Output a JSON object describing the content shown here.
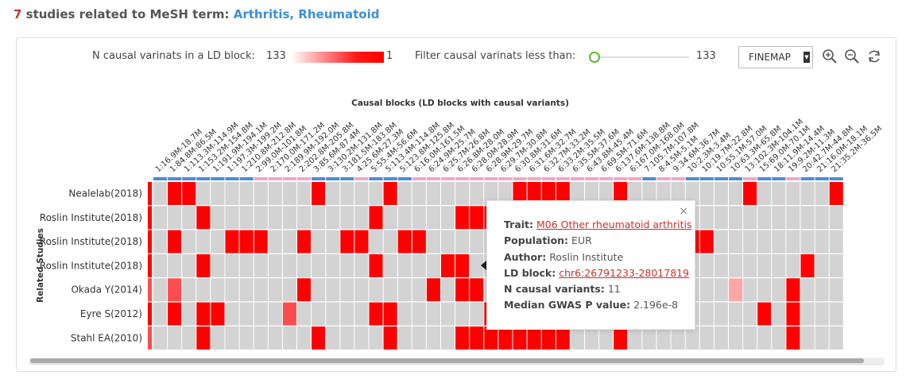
{
  "heading": {
    "count": "7",
    "text": " studies related to MeSH term: ",
    "term": "Arthritis, Rheumatoid"
  },
  "controls": {
    "ld_label": "N causal varinats in a LD block:",
    "ld_min": "133",
    "ld_max": "1",
    "filter_label": "Filter causal varinats less than:",
    "filter_value": "133",
    "select_value": "FINEMAP",
    "icons": [
      "zoom-in-icon",
      "zoom-out-icon",
      "refresh-icon"
    ]
  },
  "colors": {
    "high": "#ff0000",
    "medium": "#ff4d4d",
    "light": "#ffa6a6",
    "empty": "#d3d3d3",
    "chr_odd": "#4d8cd6",
    "chr_even": "#f0a6c8",
    "accent": "#3a8fd9"
  },
  "chart_data": {
    "type": "heatmap",
    "title": "Causal blocks (LD blocks with causal variants)",
    "ylabel": "Related Studies",
    "blocks": [
      "1:16.9M-18.7M",
      "1:84.8M-86.5M",
      "1:113.3M-114.9M",
      "1:153.2M-154.8M",
      "1:191.9M-194.1M",
      "1:197.3M-199.2M",
      "1:210.8M-212.8M",
      "2:99.0M-101.8M",
      "2:170.0M-171.2M",
      "2:189.9M-192.0M",
      "2:202.8M-205.8M",
      "3:85.6M-87.4M",
      "3:130.2M-131.8M",
      "3:181.5M-183.8M",
      "4:25.6M-27.3M",
      "5:55.4M-56.6M",
      "5:113.4M-114.8M",
      "5:123.8M-125.8M",
      "6:16.0M-161.5M",
      "6:24.9M-25.7M",
      "6:25.7M-26.8M",
      "6:26.8M-28.0M",
      "6:28.0M-28.9M",
      "6:28.9M-29.7M",
      "6:29.7M-30.8M",
      "6:30.8M-31.6M",
      "6:31.6M-32.7M",
      "6:32.7M-33.2M",
      "6:33.2M-35.5M",
      "6:35.5M-37.6M",
      "6:43.8M-45.4M",
      "6:69.5M-71.6M",
      "6:137.6M-138.8M",
      "6:167.0M-168.0M",
      "7:105.7M-107.8M",
      "8:4.5M-5.1M",
      "9:34.6M-36.7M",
      "10:2.3M-3.4M",
      "10:19.7M-22.8M",
      "10:55.1M-57.0M",
      "10:63.3M-65.8M",
      "13:102.3M-104.1M",
      "15:69.0M-70.1M",
      "18:11.9M-14.4M",
      "19:9.2M-11.3M",
      "20:42.7M-44.8M",
      "21:16.0M-18.1M",
      "21:35.2M-36.5M"
    ],
    "chromosome_bar": [
      "odd",
      "odd",
      "odd",
      "odd",
      "odd",
      "odd",
      "odd",
      "even",
      "even",
      "even",
      "even",
      "odd",
      "odd",
      "odd",
      "even",
      "odd",
      "odd",
      "odd",
      "even",
      "even",
      "even",
      "even",
      "even",
      "even",
      "even",
      "even",
      "even",
      "even",
      "even",
      "even",
      "even",
      "even",
      "even",
      "even",
      "odd",
      "even",
      "even",
      "odd",
      "odd",
      "odd",
      "odd",
      "even",
      "odd",
      "odd",
      "even",
      "odd",
      "odd",
      "odd"
    ],
    "studies": [
      "Nealelab(2018)",
      "Roslin Institute(2018)",
      "Roslin Institute(2018)",
      "Roslin Institute(2018)",
      "Okada Y(2014)",
      "Eyre S(2012)",
      "Stahl EA(2010)"
    ],
    "row_lead_level": [
      3,
      3,
      3,
      3,
      2,
      3,
      2
    ],
    "matrix": [
      [
        0,
        3,
        3,
        0,
        0,
        0,
        0,
        0,
        0,
        0,
        0,
        3,
        0,
        0,
        0,
        0,
        3,
        0,
        0,
        0,
        0,
        0,
        0,
        0,
        0,
        3,
        3,
        3,
        3,
        0,
        0,
        0,
        3,
        0,
        0,
        0,
        0,
        0,
        0,
        0,
        0,
        3,
        0,
        0,
        0,
        0,
        0,
        3
      ],
      [
        0,
        0,
        0,
        3,
        0,
        0,
        0,
        0,
        0,
        0,
        0,
        0,
        0,
        0,
        0,
        3,
        0,
        0,
        0,
        0,
        0,
        3,
        3,
        3,
        0,
        0,
        0,
        0,
        0,
        0,
        0,
        0,
        0,
        0,
        0,
        0,
        0,
        0,
        0,
        0,
        0,
        0,
        0,
        0,
        0,
        0,
        0,
        0
      ],
      [
        0,
        3,
        0,
        0,
        0,
        3,
        3,
        3,
        0,
        0,
        3,
        0,
        0,
        3,
        3,
        0,
        0,
        3,
        3,
        0,
        0,
        0,
        0,
        0,
        0,
        0,
        0,
        0,
        0,
        0,
        0,
        0,
        0,
        0,
        0,
        0,
        3,
        3,
        3,
        0,
        0,
        0,
        0,
        0,
        0,
        0,
        0,
        0
      ],
      [
        0,
        0,
        0,
        3,
        0,
        0,
        0,
        0,
        0,
        0,
        0,
        0,
        0,
        0,
        0,
        3,
        0,
        0,
        0,
        0,
        3,
        3,
        0,
        0,
        0,
        0,
        0,
        0,
        0,
        0,
        0,
        0,
        0,
        0,
        0,
        0,
        0,
        0,
        0,
        0,
        0,
        0,
        0,
        0,
        0,
        3,
        0,
        0
      ],
      [
        0,
        2,
        0,
        0,
        0,
        0,
        0,
        0,
        0,
        0,
        3,
        0,
        0,
        0,
        0,
        0,
        0,
        0,
        0,
        3,
        0,
        3,
        3,
        0,
        0,
        0,
        0,
        0,
        0,
        0,
        0,
        0,
        0,
        0,
        0,
        0,
        0,
        0,
        0,
        0,
        1,
        0,
        0,
        0,
        3,
        0,
        0,
        0
      ],
      [
        0,
        3,
        0,
        3,
        3,
        0,
        0,
        0,
        0,
        2,
        0,
        0,
        0,
        0,
        0,
        3,
        3,
        0,
        0,
        0,
        0,
        0,
        0,
        3,
        0,
        0,
        0,
        0,
        0,
        0,
        0,
        0,
        0,
        0,
        0,
        0,
        0,
        0,
        0,
        0,
        0,
        0,
        3,
        0,
        3,
        0,
        0,
        0
      ],
      [
        0,
        0,
        0,
        3,
        0,
        0,
        0,
        0,
        0,
        0,
        0,
        3,
        0,
        0,
        0,
        0,
        3,
        0,
        0,
        0,
        0,
        3,
        3,
        3,
        3,
        3,
        3,
        3,
        3,
        0,
        0,
        0,
        3,
        0,
        0,
        0,
        0,
        0,
        0,
        0,
        0,
        0,
        0,
        0,
        3,
        0,
        0,
        0
      ]
    ]
  },
  "tooltip": {
    "trait_label": "Trait:",
    "trait_value": "M06 Other rheumatoid arthritis",
    "population_label": "Population:",
    "population_value": "EUR",
    "author_label": "Author:",
    "author_value": "Roslin Institute",
    "ldblock_label": "LD block:",
    "ldblock_value": "chr6:26791233-28017819",
    "ncausal_label": "N causal variants:",
    "ncausal_value": "11",
    "median_label": "Median GWAS P value:",
    "median_value": "2.196e-8",
    "close": "×"
  }
}
